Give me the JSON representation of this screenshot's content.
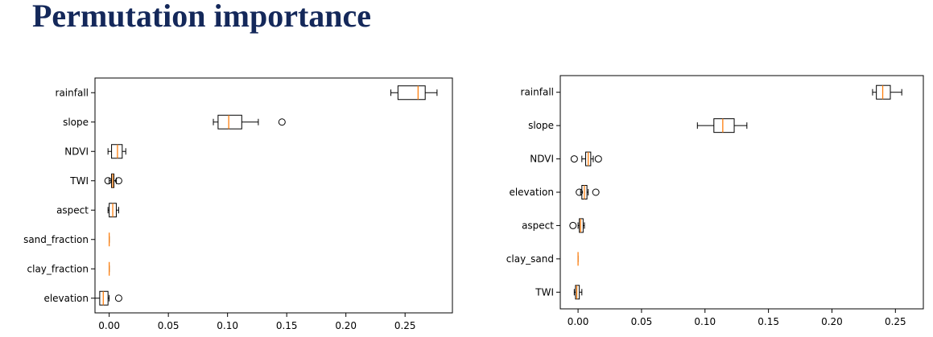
{
  "slide": {
    "title": "Permutation importance"
  },
  "chart_data": [
    {
      "type": "boxplot",
      "orientation": "horizontal",
      "xlim": [
        -0.012,
        0.29
      ],
      "xticks": [
        0.0,
        0.05,
        0.1,
        0.15,
        0.2,
        0.25
      ],
      "xtick_labels": [
        "0.00",
        "0.05",
        "0.10",
        "0.15",
        "0.20",
        "0.25"
      ],
      "categories": [
        "rainfall",
        "slope",
        "NDVI",
        "TWI",
        "aspect",
        "sand_fraction",
        "clay_fraction",
        "elevation"
      ],
      "boxes": [
        {
          "whislo": 0.238,
          "q1": 0.244,
          "med": 0.261,
          "q3": 0.267,
          "whishi": 0.277,
          "fliers": []
        },
        {
          "whislo": 0.088,
          "q1": 0.092,
          "med": 0.101,
          "q3": 0.112,
          "whishi": 0.126,
          "fliers": [
            0.146
          ]
        },
        {
          "whislo": -0.001,
          "q1": 0.002,
          "med": 0.007,
          "q3": 0.011,
          "whishi": 0.014,
          "fliers": []
        },
        {
          "whislo": 0.0,
          "q1": 0.002,
          "med": 0.003,
          "q3": 0.004,
          "whishi": 0.006,
          "fliers": [
            -0.001,
            0.008
          ]
        },
        {
          "whislo": -0.001,
          "q1": 0.0,
          "med": 0.003,
          "q3": 0.006,
          "whishi": 0.008,
          "fliers": []
        },
        {
          "whislo": 0.0,
          "q1": 0.0,
          "med": 0.0,
          "q3": 0.0,
          "whishi": 0.0,
          "fliers": []
        },
        {
          "whislo": 0.0,
          "q1": 0.0,
          "med": 0.0,
          "q3": 0.0,
          "whishi": 0.0,
          "fliers": []
        },
        {
          "whislo": -0.012,
          "q1": -0.008,
          "med": -0.005,
          "q3": -0.001,
          "whishi": 0.0,
          "fliers": [
            0.008
          ]
        }
      ],
      "colors": {
        "box": "#000000",
        "median": "#ff7f0e"
      }
    },
    {
      "type": "boxplot",
      "orientation": "horizontal",
      "xlim": [
        -0.014,
        0.272
      ],
      "xticks": [
        0.0,
        0.05,
        0.1,
        0.15,
        0.2,
        0.25
      ],
      "xtick_labels": [
        "0.00",
        "0.05",
        "0.10",
        "0.15",
        "0.20",
        "0.25"
      ],
      "categories": [
        "rainfall",
        "slope",
        "NDVI",
        "elevation",
        "aspect",
        "clay_sand",
        "TWI"
      ],
      "boxes": [
        {
          "whislo": 0.232,
          "q1": 0.235,
          "med": 0.24,
          "q3": 0.246,
          "whishi": 0.255,
          "fliers": []
        },
        {
          "whislo": 0.094,
          "q1": 0.107,
          "med": 0.114,
          "q3": 0.123,
          "whishi": 0.133,
          "fliers": []
        },
        {
          "whislo": 0.003,
          "q1": 0.006,
          "med": 0.008,
          "q3": 0.01,
          "whishi": 0.012,
          "fliers": [
            -0.003,
            0.016
          ]
        },
        {
          "whislo": 0.002,
          "q1": 0.003,
          "med": 0.005,
          "q3": 0.007,
          "whishi": 0.008,
          "fliers": [
            0.001,
            0.014
          ]
        },
        {
          "whislo": 0.0,
          "q1": 0.001,
          "med": 0.002,
          "q3": 0.004,
          "whishi": 0.005,
          "fliers": [
            -0.004
          ]
        },
        {
          "whislo": 0.0,
          "q1": 0.0,
          "med": 0.0,
          "q3": 0.0,
          "whishi": 0.0,
          "fliers": []
        },
        {
          "whislo": -0.003,
          "q1": -0.002,
          "med": -0.001,
          "q3": 0.001,
          "whishi": 0.003,
          "fliers": []
        }
      ],
      "colors": {
        "box": "#000000",
        "median": "#ff7f0e"
      }
    }
  ]
}
